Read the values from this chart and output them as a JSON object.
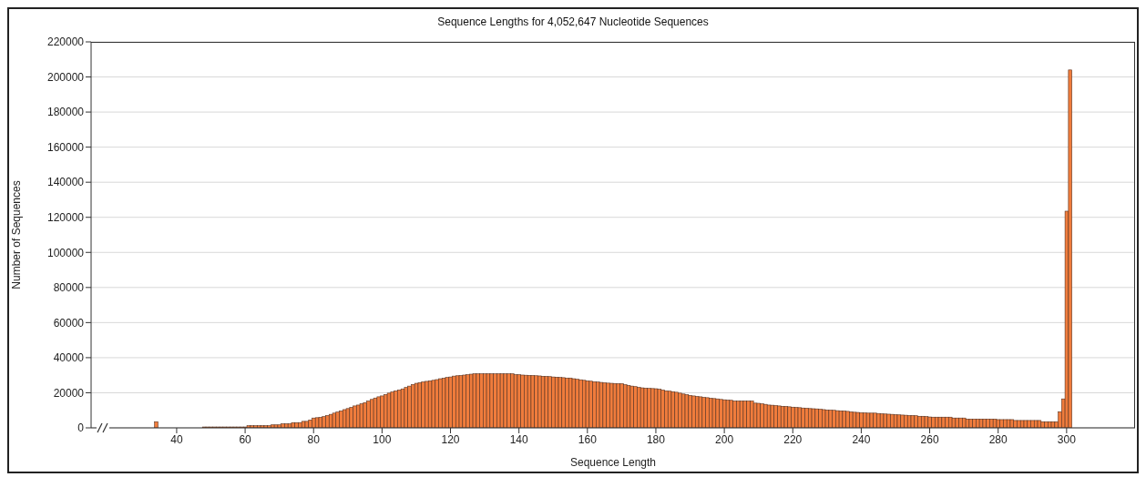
{
  "chart_data": {
    "type": "histogram",
    "title": "Sequence Lengths for 4,052,647 Nucleotide Sequences",
    "xlabel": "Sequence Length",
    "ylabel": "Number of Sequences",
    "color": "#f07c3c",
    "grid": "y",
    "xlim": [
      15,
      320
    ],
    "xticks": [
      40,
      60,
      80,
      100,
      120,
      140,
      160,
      180,
      200,
      220,
      240,
      260,
      280,
      300
    ],
    "ylim": [
      0,
      220000
    ],
    "yticks": [
      0,
      20000,
      40000,
      60000,
      80000,
      100000,
      120000,
      140000,
      160000,
      180000,
      200000,
      220000
    ],
    "bins": [
      33.5,
      34.5,
      47.5,
      48.5,
      49.5,
      50.5,
      51.5,
      52.5,
      53.5,
      54.5,
      55.5,
      56.5,
      57.5,
      58.5,
      59.5,
      60.5,
      61.5,
      62.5,
      63.5,
      64.5,
      65.5,
      66.5,
      67.5,
      68.5,
      69.5,
      70.5,
      71.5,
      72.5,
      73.5,
      74.5,
      75.5,
      76.5,
      77.5,
      78.5,
      79.5,
      80.5,
      81.5,
      82.5,
      83.5,
      84.5,
      85.5,
      86.5,
      87.5,
      88.5,
      89.5,
      90.5,
      91.5,
      92.5,
      93.5,
      94.5,
      95.5,
      96.5,
      97.5,
      98.5,
      99.5,
      100.5,
      101.5,
      102.5,
      103.5,
      104.5,
      105.5,
      106.5,
      107.5,
      108.5,
      109.5,
      110.5,
      111.5,
      112.5,
      113.5,
      114.5,
      115.5,
      116.5,
      117.5,
      118.5,
      119.5,
      120.5,
      121.5,
      122.5,
      123.5,
      124.5,
      125.5,
      126.5,
      127.5,
      128.5,
      129.5,
      130.5,
      131.5,
      132.5,
      133.5,
      134.5,
      135.5,
      136.5,
      137.5,
      138.5,
      139.5,
      140.5,
      141.5,
      142.5,
      143.5,
      144.5,
      145.5,
      146.5,
      147.5,
      148.5,
      149.5,
      150.5,
      151.5,
      152.5,
      153.5,
      154.5,
      155.5,
      156.5,
      157.5,
      158.5,
      159.5,
      160.5,
      161.5,
      162.5,
      163.5,
      164.5,
      165.5,
      166.5,
      167.5,
      168.5,
      169.5,
      170.5,
      171.5,
      172.5,
      173.5,
      174.5,
      175.5,
      176.5,
      177.5,
      178.5,
      179.5,
      180.5,
      181.5,
      182.5,
      183.5,
      184.5,
      185.5,
      186.5,
      187.5,
      188.5,
      189.5,
      190.5,
      191.5,
      192.5,
      193.5,
      194.5,
      195.5,
      196.5,
      197.5,
      198.5,
      199.5,
      200.5,
      201.5,
      202.5,
      203.5,
      204.5,
      205.5,
      206.5,
      207.5,
      208.5,
      209.5,
      210.5,
      211.5,
      212.5,
      213.5,
      214.5,
      215.5,
      216.5,
      217.5,
      218.5,
      219.5,
      220.5,
      221.5,
      222.5,
      223.5,
      224.5,
      225.5,
      226.5,
      227.5,
      228.5,
      229.5,
      230.5,
      231.5,
      232.5,
      233.5,
      234.5,
      235.5,
      236.5,
      237.5,
      238.5,
      239.5,
      240.5,
      241.5,
      242.5,
      243.5,
      244.5,
      245.5,
      246.5,
      247.5,
      248.5,
      249.5,
      250.5,
      251.5,
      252.5,
      253.5,
      254.5,
      255.5,
      256.5,
      257.5,
      258.5,
      259.5,
      260.5,
      261.5,
      262.5,
      263.5,
      264.5,
      265.5,
      266.5,
      267.5,
      268.5,
      269.5,
      270.5,
      271.5,
      272.5,
      273.5,
      274.5,
      275.5,
      276.5,
      277.5,
      278.5,
      279.5,
      280.5,
      281.5,
      282.5,
      283.5,
      284.5,
      285.5,
      286.5,
      287.5,
      288.5,
      289.5,
      290.5,
      291.5,
      292.5,
      293.5,
      294.5,
      295.5,
      296.5,
      297.5,
      298.5,
      299.5,
      300.5,
      301.5
    ],
    "values": [
      3500,
      0,
      500,
      500,
      500,
      500,
      500,
      500,
      500,
      500,
      500,
      500,
      500,
      500,
      500,
      1200,
      1200,
      1200,
      1200,
      1200,
      1200,
      1200,
      1700,
      1700,
      1700,
      2300,
      2300,
      2300,
      3000,
      3000,
      3000,
      3700,
      3700,
      4500,
      5600,
      5800,
      6000,
      6400,
      7000,
      7700,
      8400,
      9000,
      9700,
      10400,
      11000,
      11700,
      12500,
      13000,
      13700,
      14400,
      15300,
      16200,
      17000,
      17700,
      18200,
      19000,
      19800,
      20500,
      21100,
      21600,
      22200,
      23000,
      23800,
      24700,
      25400,
      25800,
      26200,
      26500,
      26800,
      27100,
      27500,
      28000,
      28300,
      28700,
      29000,
      29500,
      29700,
      29800,
      30100,
      30300,
      30600,
      30800,
      30800,
      30800,
      30800,
      30800,
      30800,
      30800,
      30800,
      30800,
      30800,
      30800,
      30800,
      30300,
      30300,
      30100,
      30000,
      29900,
      29800,
      29700,
      29600,
      29400,
      29300,
      29200,
      29000,
      28900,
      28700,
      28600,
      28400,
      28400,
      28000,
      27700,
      27400,
      27100,
      26800,
      26600,
      26300,
      26100,
      25900,
      25700,
      25500,
      25400,
      25300,
      25200,
      25200,
      24600,
      24200,
      23800,
      23500,
      23100,
      22800,
      22600,
      22500,
      22400,
      22300,
      22000,
      21600,
      21100,
      20900,
      20600,
      20300,
      19800,
      19300,
      18900,
      18500,
      18200,
      17900,
      17700,
      17400,
      17200,
      16900,
      16700,
      16500,
      16200,
      16000,
      15800,
      15700,
      15300,
      15300,
      15300,
      15300,
      15300,
      15300,
      14100,
      14000,
      13700,
      13400,
      13000,
      12900,
      12700,
      12500,
      12300,
      12200,
      12000,
      11800,
      11600,
      11500,
      11300,
      11200,
      11000,
      10900,
      10800,
      10600,
      10400,
      10200,
      10100,
      10000,
      9800,
      9700,
      9600,
      9400,
      9100,
      8900,
      8800,
      8600,
      8500,
      8400,
      8400,
      8400,
      8200,
      8000,
      7900,
      7800,
      7700,
      7500,
      7400,
      7300,
      7200,
      7000,
      7000,
      6900,
      6600,
      6600,
      6400,
      6200,
      6100,
      6100,
      6100,
      6100,
      6100,
      6100,
      5600,
      5600,
      5600,
      5600,
      5000,
      5000,
      5000,
      5000,
      5000,
      5000,
      5000,
      5000,
      5000,
      4700,
      4700,
      4700,
      4700,
      4700,
      4200,
      4200,
      4200,
      4200,
      4200,
      4200,
      4200,
      4200,
      3500,
      3500,
      3500,
      3500,
      3500,
      9200,
      16500,
      123500,
      204000
    ]
  }
}
